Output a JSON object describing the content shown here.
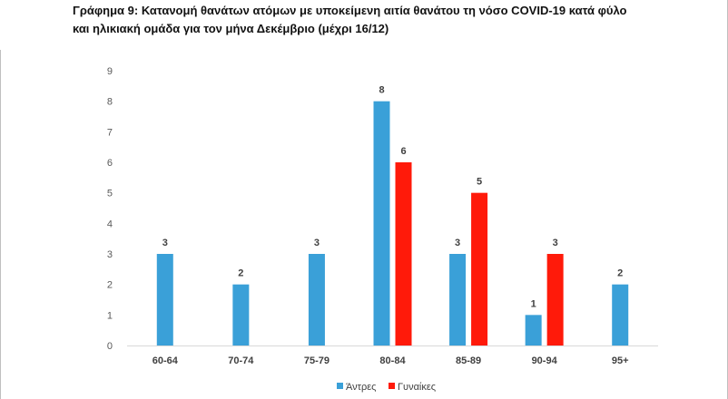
{
  "title_lines": [
    "Γράφημα 9: Κατανομή θανάτων ατόμων με υποκείμενη αιτία θανάτου τη νόσο COVID-19 κατά φύλο",
    "και ηλικιακή ομάδα για τον μήνα Δεκέμβριο (μέχρι 16/12)"
  ],
  "chart_data": {
    "type": "bar",
    "title": "Γράφημα 9: Κατανομή θανάτων ατόμων με υποκείμενη αιτία θανάτου τη νόσο COVID-19 κατά φύλο και ηλικιακή ομάδα για τον μήνα Δεκέμβριο (μέχρι 16/12)",
    "categories": [
      "60-64",
      "70-74",
      "75-79",
      "80-84",
      "85-89",
      "90-94",
      "95+"
    ],
    "series": [
      {
        "name": "Άντρες",
        "color": "#3aa0d8",
        "values": [
          3,
          2,
          3,
          8,
          3,
          1,
          2
        ]
      },
      {
        "name": "Γυναίκες",
        "color": "#ff1a0a",
        "values": [
          null,
          null,
          null,
          6,
          5,
          3,
          null
        ]
      }
    ],
    "ylim": [
      0,
      9
    ],
    "yticks": [
      0,
      1,
      2,
      3,
      4,
      5,
      6,
      7,
      8,
      9
    ],
    "grid": false,
    "legend_position": "bottom-center",
    "xlabel": "",
    "ylabel": ""
  }
}
